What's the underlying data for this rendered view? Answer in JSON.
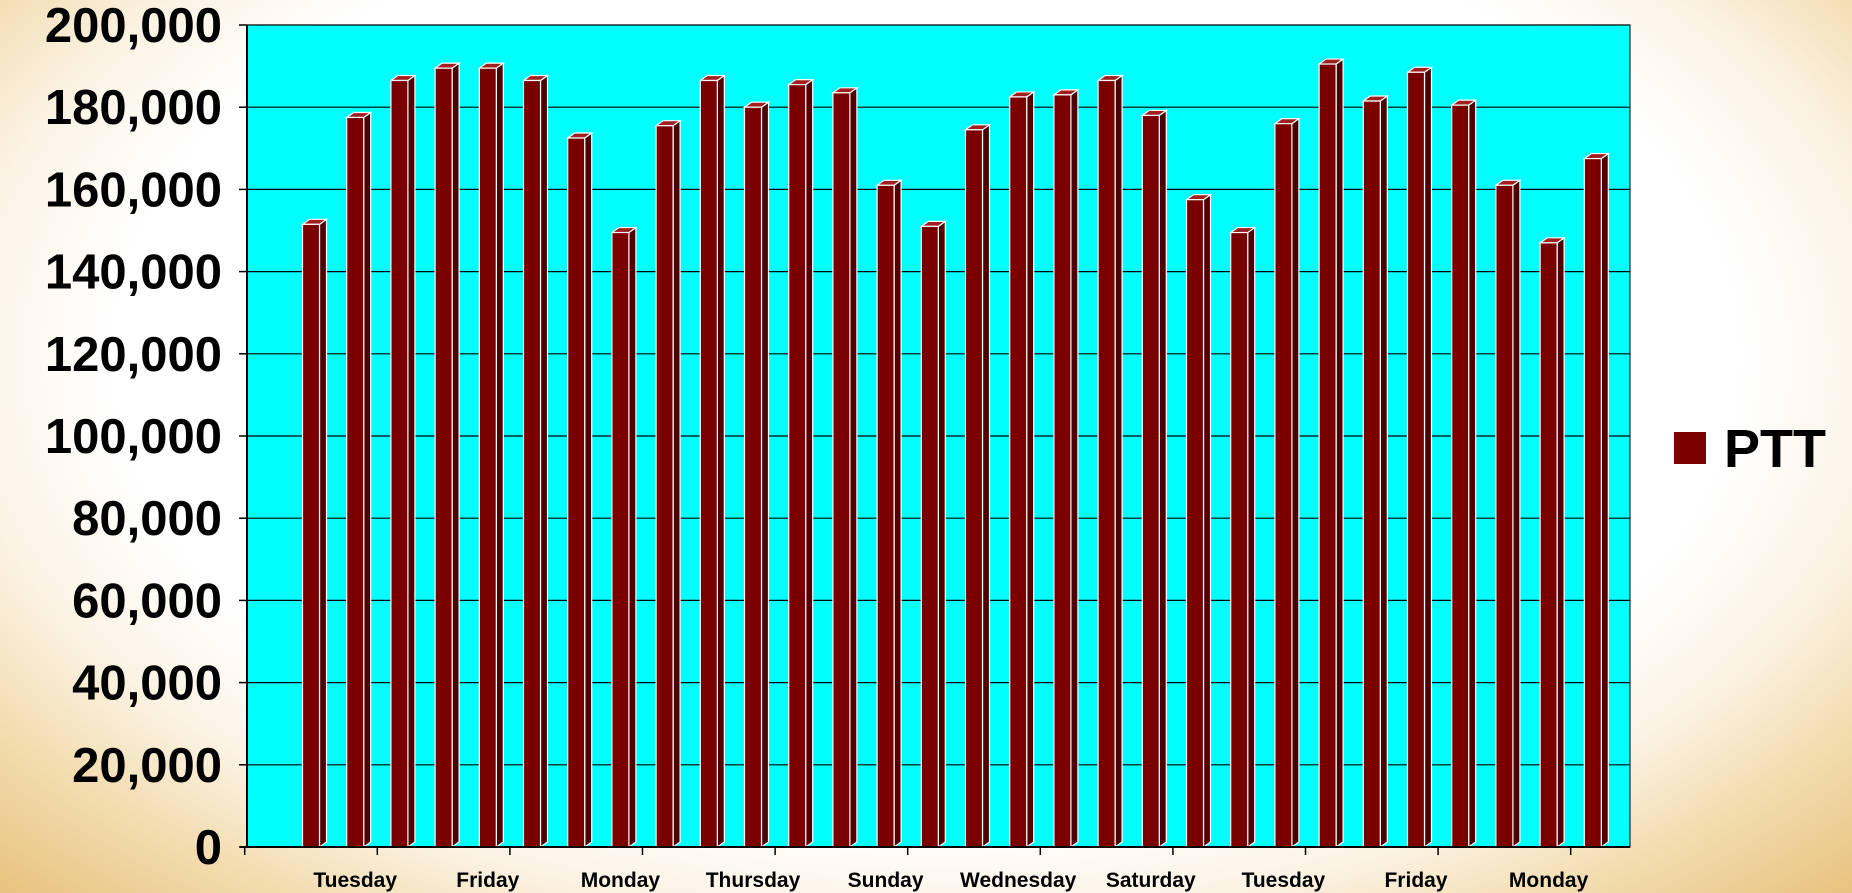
{
  "chart_data": {
    "type": "bar",
    "legend_position": "right",
    "grid": true,
    "background_color": "#00ffff",
    "bar_color": "#7a0000",
    "ylim": [
      0,
      200000
    ],
    "yticks": [
      0,
      20000,
      40000,
      60000,
      80000,
      100000,
      120000,
      140000,
      160000,
      180000,
      200000
    ],
    "ytick_labels": [
      "0",
      "20,000",
      "40,000",
      "60,000",
      "80,000",
      "100,000",
      "120,000",
      "140,000",
      "160,000",
      "180,000",
      "200,000"
    ],
    "x_tick_labels": [
      "Tuesday",
      "Friday",
      "Monday",
      "Thursday",
      "Sunday",
      "Wednesday",
      "Saturday",
      "Tuesday",
      "Friday",
      "Monday"
    ],
    "series": [
      {
        "name": "PTT",
        "values": [
          151500,
          177500,
          186500,
          189500,
          189500,
          186500,
          172500,
          149500,
          175500,
          186500,
          180000,
          185500,
          183500,
          161000,
          151000,
          174500,
          182500,
          183000,
          186500,
          178000,
          157500,
          149500,
          176000,
          190500,
          181500,
          188500,
          180500,
          161000,
          147000,
          167500
        ]
      }
    ]
  }
}
